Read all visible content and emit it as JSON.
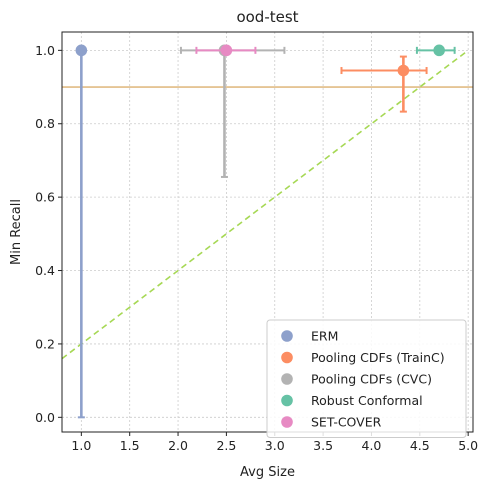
{
  "chart_data": {
    "type": "scatter",
    "title": "ood-test",
    "xlabel": "Avg Size",
    "ylabel": "Min Recall",
    "xlim": [
      0.8,
      5.05
    ],
    "ylim": [
      -0.04,
      1.05
    ],
    "xticks": [
      1.0,
      1.5,
      2.0,
      2.5,
      3.0,
      3.5,
      4.0,
      4.5,
      5.0
    ],
    "xtick_labels": [
      "1.0",
      "1.5",
      "2.0",
      "2.5",
      "3.0",
      "3.5",
      "4.0",
      "4.5",
      "5.0"
    ],
    "yticks": [
      0.0,
      0.2,
      0.4,
      0.6,
      0.8,
      1.0
    ],
    "ytick_labels": [
      "0.0",
      "0.2",
      "0.4",
      "0.6",
      "0.8",
      "1.0"
    ],
    "grid": true,
    "legend_position": "bottom-right",
    "reference_lines": [
      {
        "kind": "horizontal",
        "y": 0.9,
        "color": "#e5c494"
      },
      {
        "kind": "diagonal",
        "x": [
          0.8,
          5.0
        ],
        "y": [
          0.16,
          1.0
        ],
        "color": "#a6d854",
        "dash": "dashed"
      }
    ],
    "series": [
      {
        "name": "ERM",
        "color": "#8da0cb",
        "x": 1.0,
        "y": 1.0,
        "x_err": [
          1.0,
          1.0
        ],
        "y_err": [
          0.0,
          1.0
        ]
      },
      {
        "name": "Pooling CDFs (TrainC)",
        "color": "#fc8d62",
        "x": 4.33,
        "y": 0.945,
        "x_err": [
          3.69,
          4.57
        ],
        "y_err": [
          0.833,
          0.983
        ]
      },
      {
        "name": "Pooling CDFs (CVC)",
        "color": "#b3b3b3",
        "x": 2.48,
        "y": 1.0,
        "x_err": [
          2.03,
          3.1
        ],
        "y_err": [
          0.655,
          1.0
        ]
      },
      {
        "name": "Robust Conformal",
        "color": "#66c2a5",
        "x": 4.7,
        "y": 1.0,
        "x_err": [
          4.47,
          4.86
        ],
        "y_err": [
          1.0,
          1.0
        ]
      },
      {
        "name": "SET-COVER",
        "color": "#e78ac3",
        "x": 2.5,
        "y": 1.0,
        "x_err": [
          2.19,
          2.8
        ],
        "y_err": [
          1.0,
          1.0
        ]
      }
    ]
  }
}
